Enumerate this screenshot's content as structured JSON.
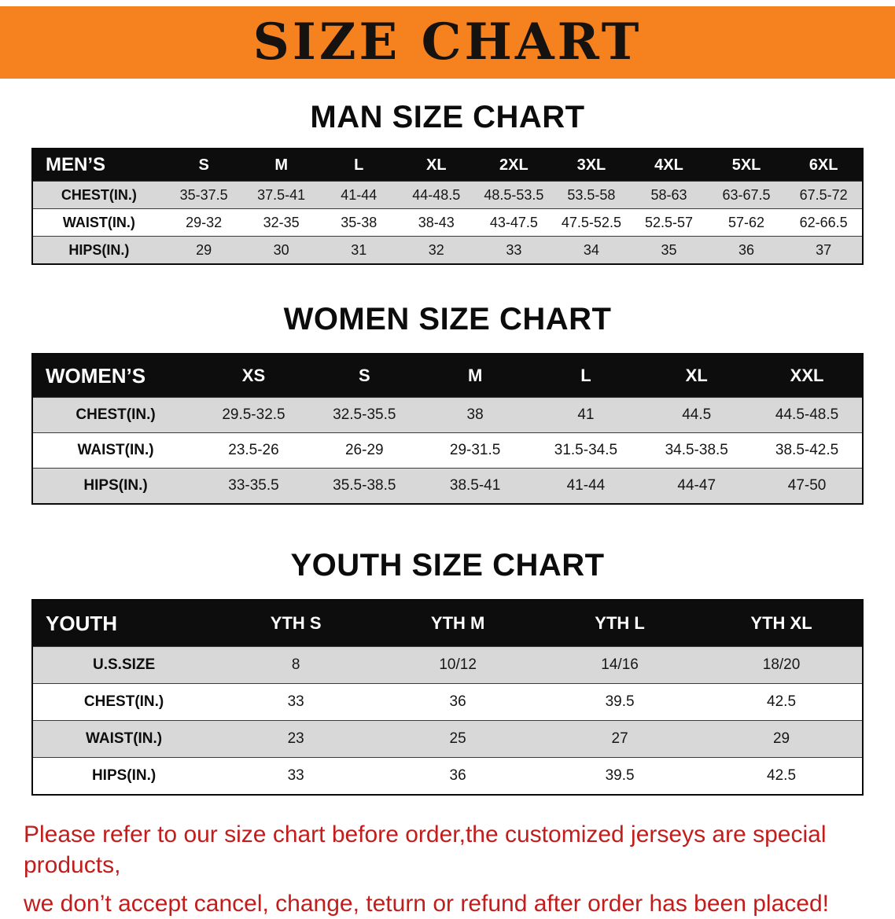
{
  "banner": {
    "title": "SIZE CHART",
    "bg_color": "#f5821f",
    "text_color": "#161210"
  },
  "sections": [
    {
      "heading": "MAN SIZE CHART",
      "table": {
        "header": [
          "MEN’S",
          "S",
          "M",
          "L",
          "XL",
          "2XL",
          "3XL",
          "4XL",
          "5XL",
          "6XL"
        ],
        "rows": [
          [
            "CHEST(IN.)",
            "35-37.5",
            "37.5-41",
            "41-44",
            "44-48.5",
            "48.5-53.5",
            "53.5-58",
            "58-63",
            "63-67.5",
            "67.5-72"
          ],
          [
            "WAIST(IN.)",
            "29-32",
            "32-35",
            "35-38",
            "38-43",
            "43-47.5",
            "47.5-52.5",
            "52.5-57",
            "57-62",
            "62-66.5"
          ],
          [
            "HIPS(IN.)",
            "29",
            "30",
            "31",
            "32",
            "33",
            "34",
            "35",
            "36",
            "37"
          ]
        ]
      }
    },
    {
      "heading": "WOMEN SIZE CHART",
      "table": {
        "header": [
          "WOMEN’S",
          "XS",
          "S",
          "M",
          "L",
          "XL",
          "XXL"
        ],
        "rows": [
          [
            "CHEST(IN.)",
            "29.5-32.5",
            "32.5-35.5",
            "38",
            "41",
            "44.5",
            "44.5-48.5"
          ],
          [
            "WAIST(IN.)",
            "23.5-26",
            "26-29",
            "29-31.5",
            "31.5-34.5",
            "34.5-38.5",
            "38.5-42.5"
          ],
          [
            "HIPS(IN.)",
            "33-35.5",
            "35.5-38.5",
            "38.5-41",
            "41-44",
            "44-47",
            "47-50"
          ]
        ]
      }
    },
    {
      "heading": "YOUTH SIZE CHART",
      "table": {
        "header": [
          "YOUTH",
          "YTH S",
          "YTH M",
          "YTH L",
          "YTH XL"
        ],
        "rows": [
          [
            "U.S.SIZE",
            "8",
            "10/12",
            "14/16",
            "18/20"
          ],
          [
            "CHEST(IN.)",
            "33",
            "36",
            "39.5",
            "42.5"
          ],
          [
            "WAIST(IN.)",
            "23",
            "25",
            "27",
            "29"
          ],
          [
            "HIPS(IN.)",
            "33",
            "36",
            "39.5",
            "42.5"
          ]
        ]
      }
    }
  ],
  "disclaimer": {
    "line1": "Please refer to our size chart before order,the customized jerseys are special products,",
    "line2": "we don’t accept cancel, change, teturn or refund after order has been placed!",
    "color": "#c21d1d"
  }
}
